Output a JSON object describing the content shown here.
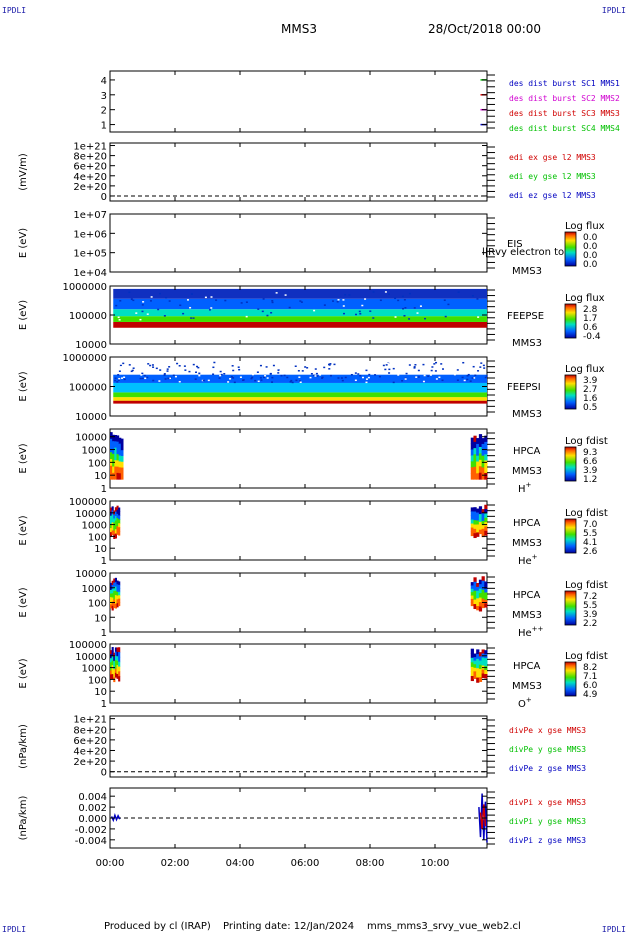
{
  "header": {
    "corner_tl": "IPDLI",
    "corner_tr": "IPDLI",
    "corner_bl": "IPDLI",
    "corner_br": "IPDLI",
    "title": "MMS3",
    "date": "28/Oct/2018 00:00"
  },
  "footer": {
    "produced": "Produced by cl (IRAP)",
    "printed": "Printing date: 12/Jan/2024",
    "script": "mms_mms3_srvy_vue_web2.cl"
  },
  "colors": {
    "mms1": "#0000c0",
    "mms2": "#d000d0",
    "mms3": "#d00000",
    "mms4": "#00c000",
    "x": "#d00000",
    "y": "#00c000",
    "z": "#0000c0"
  },
  "chart_data": [
    {
      "type": "line",
      "panel": "burst",
      "yticks": [
        "1",
        "2",
        "3",
        "4"
      ],
      "ylim": [
        0.5,
        4.6
      ],
      "legend": [
        {
          "text": "des dist burst SC1 MMS1",
          "color": "#0000c0"
        },
        {
          "text": "des dist burst SC2 MMS2",
          "color": "#d000d0"
        },
        {
          "text": "des dist burst SC3 MMS3",
          "color": "#d00000"
        },
        {
          "text": "des dist burst SC4 MMS4",
          "color": "#00c000"
        }
      ],
      "series": [
        {
          "color": "#00c000",
          "x": [
            11.4,
            11.6
          ],
          "y": [
            4,
            4
          ]
        },
        {
          "color": "#d00000",
          "x": [
            11.4,
            11.6
          ],
          "y": [
            3,
            3
          ]
        },
        {
          "color": "#d000d0",
          "x": [
            11.4,
            11.6
          ],
          "y": [
            2,
            2
          ]
        },
        {
          "color": "#0000c0",
          "x": [
            11.4,
            11.6
          ],
          "y": [
            1,
            1
          ]
        }
      ]
    },
    {
      "type": "line",
      "panel": "edi",
      "ylabel": "(mV/m)",
      "yticks": [
        "0",
        "2e+20",
        "4e+20",
        "6e+20",
        "8e+20",
        "1e+21"
      ],
      "ylim": [
        -1e+20,
        1.05e+21
      ],
      "zero_line": true,
      "legend": [
        {
          "text": "edi ex gse l2 MMS3",
          "color": "#d00000"
        },
        {
          "text": "edi ey gse l2 MMS3",
          "color": "#00c000"
        },
        {
          "text": "edi ez gse l2 MMS3",
          "color": "#0000c0"
        }
      ]
    },
    {
      "type": "heatmap",
      "panel": "eis",
      "ylabel": "E (eV)",
      "yticks": [
        "1e+04",
        "1e+05",
        "1e+06",
        "1e+07"
      ],
      "log": true,
      "ylim": [
        10000,
        10000000
      ],
      "instrument": "EIS",
      "mission": "MMS3",
      "overlay_text": "l|Rvy electron to",
      "cbar_title": "Log flux",
      "cbar_ticks": [
        "0.0",
        "0.0",
        "0.0",
        "0.0"
      ]
    },
    {
      "type": "heatmap",
      "panel": "feepse",
      "ylabel": "E (eV)",
      "yticks": [
        "10000",
        "100000",
        "1000000"
      ],
      "log": true,
      "ylim": [
        10000,
        1000000
      ],
      "instrument": "FEEPSE",
      "mission": "MMS3",
      "cbar_title": "Log flux",
      "cbar_ticks": [
        "2.8",
        "1.7",
        "0.6",
        "-0.4"
      ],
      "time_ranges": [
        [
          0.1,
          11.6
        ]
      ]
    },
    {
      "type": "heatmap",
      "panel": "feepsi",
      "ylabel": "E (eV)",
      "yticks": [
        "10000",
        "100000",
        "1000000"
      ],
      "log": true,
      "ylim": [
        10000,
        1000000
      ],
      "instrument": "FEEPSI",
      "mission": "MMS3",
      "cbar_title": "Log flux",
      "cbar_ticks": [
        "3.9",
        "2.7",
        "1.6",
        "0.5"
      ],
      "time_ranges": [
        [
          0.1,
          11.6
        ]
      ]
    },
    {
      "type": "heatmap",
      "panel": "hpca_h",
      "ylabel": "E (eV)",
      "yticks": [
        "1",
        "10",
        "100",
        "1000",
        "10000"
      ],
      "log": true,
      "ylim": [
        1,
        40000
      ],
      "instrument": "HPCA",
      "mission": "MMS3",
      "species": "H",
      "species_sup": "+",
      "cbar_title": "Log fdist",
      "cbar_ticks": [
        "9.3",
        "6.6",
        "3.9",
        "1.2"
      ],
      "time_ranges": [
        [
          0.0,
          0.4
        ],
        [
          11.1,
          11.6
        ]
      ]
    },
    {
      "type": "heatmap",
      "panel": "hpca_he",
      "ylabel": "E (eV)",
      "yticks": [
        "1",
        "10",
        "100",
        "1000",
        "10000",
        "100000"
      ],
      "log": true,
      "ylim": [
        1,
        100000
      ],
      "instrument": "HPCA",
      "mission": "MMS3",
      "species": "He",
      "species_sup": "+",
      "cbar_title": "Log fdist",
      "cbar_ticks": [
        "7.0",
        "5.5",
        "4.1",
        "2.6"
      ],
      "time_ranges": [
        [
          0.0,
          0.3
        ],
        [
          11.1,
          11.6
        ]
      ]
    },
    {
      "type": "heatmap",
      "panel": "hpca_hepp",
      "ylabel": "E (eV)",
      "yticks": [
        "1",
        "10",
        "100",
        "1000",
        "10000"
      ],
      "log": true,
      "ylim": [
        1,
        10000
      ],
      "instrument": "HPCA",
      "mission": "MMS3",
      "species": "He",
      "species_sup": "++",
      "cbar_title": "Log fdist",
      "cbar_ticks": [
        "7.2",
        "5.5",
        "3.9",
        "2.2"
      ],
      "time_ranges": [
        [
          0.0,
          0.3
        ],
        [
          11.1,
          11.6
        ]
      ]
    },
    {
      "type": "heatmap",
      "panel": "hpca_o",
      "ylabel": "E (eV)",
      "yticks": [
        "1",
        "10",
        "100",
        "1000",
        "10000",
        "100000"
      ],
      "log": true,
      "ylim": [
        1,
        100000
      ],
      "instrument": "HPCA",
      "mission": "MMS3",
      "species": "O",
      "species_sup": "+",
      "cbar_title": "Log fdist",
      "cbar_ticks": [
        "8.2",
        "7.1",
        "6.0",
        "4.9"
      ],
      "time_ranges": [
        [
          0.0,
          0.3
        ],
        [
          11.1,
          11.6
        ]
      ]
    },
    {
      "type": "line",
      "panel": "divpe",
      "ylabel": "(nPa/km)",
      "yticks": [
        "0",
        "2e+20",
        "4e+20",
        "6e+20",
        "8e+20",
        "1e+21"
      ],
      "ylim": [
        -1e+20,
        1.05e+21
      ],
      "zero_line": true,
      "legend": [
        {
          "text": "divPe x gse MMS3",
          "color": "#d00000"
        },
        {
          "text": "divPe y gse MMS3",
          "color": "#00c000"
        },
        {
          "text": "divPe z gse MMS3",
          "color": "#0000c0"
        }
      ]
    },
    {
      "type": "line",
      "panel": "divpi",
      "ylabel": "(nPa/km)",
      "yticks": [
        "-0.004",
        "-0.002",
        "0.000",
        "0.002",
        "0.004"
      ],
      "ylim": [
        -0.0055,
        0.0055
      ],
      "zero_line": true,
      "legend": [
        {
          "text": "divPi x gse MMS3",
          "color": "#d00000"
        },
        {
          "text": "divPi y gse MMS3",
          "color": "#00c000"
        },
        {
          "text": "divPi z gse MMS3",
          "color": "#0000c0"
        }
      ],
      "series": [
        {
          "color": "#0000c0",
          "x": [
            0.05,
            0.1,
            0.15,
            0.2,
            0.25,
            0.3
          ],
          "y": [
            0.0003,
            -0.0004,
            0.0005,
            -0.0003,
            0.0004,
            -0.0002
          ]
        },
        {
          "color": "#0000c0",
          "x": [
            11.35,
            11.4,
            11.45,
            11.5,
            11.55,
            11.6
          ],
          "y": [
            0.002,
            -0.0035,
            0.0045,
            -0.004,
            0.003,
            -0.0045
          ]
        },
        {
          "color": "#d00000",
          "x": [
            11.4,
            11.45,
            11.5,
            11.55
          ],
          "y": [
            0.001,
            -0.002,
            0.0025,
            -0.0015
          ]
        }
      ]
    }
  ],
  "xaxis": {
    "ticks": [
      "00:00",
      "02:00",
      "04:00",
      "06:00",
      "08:00",
      "10:00"
    ],
    "tick_values": [
      0,
      2,
      4,
      6,
      8,
      10
    ],
    "xlim": [
      0,
      11.6
    ]
  }
}
